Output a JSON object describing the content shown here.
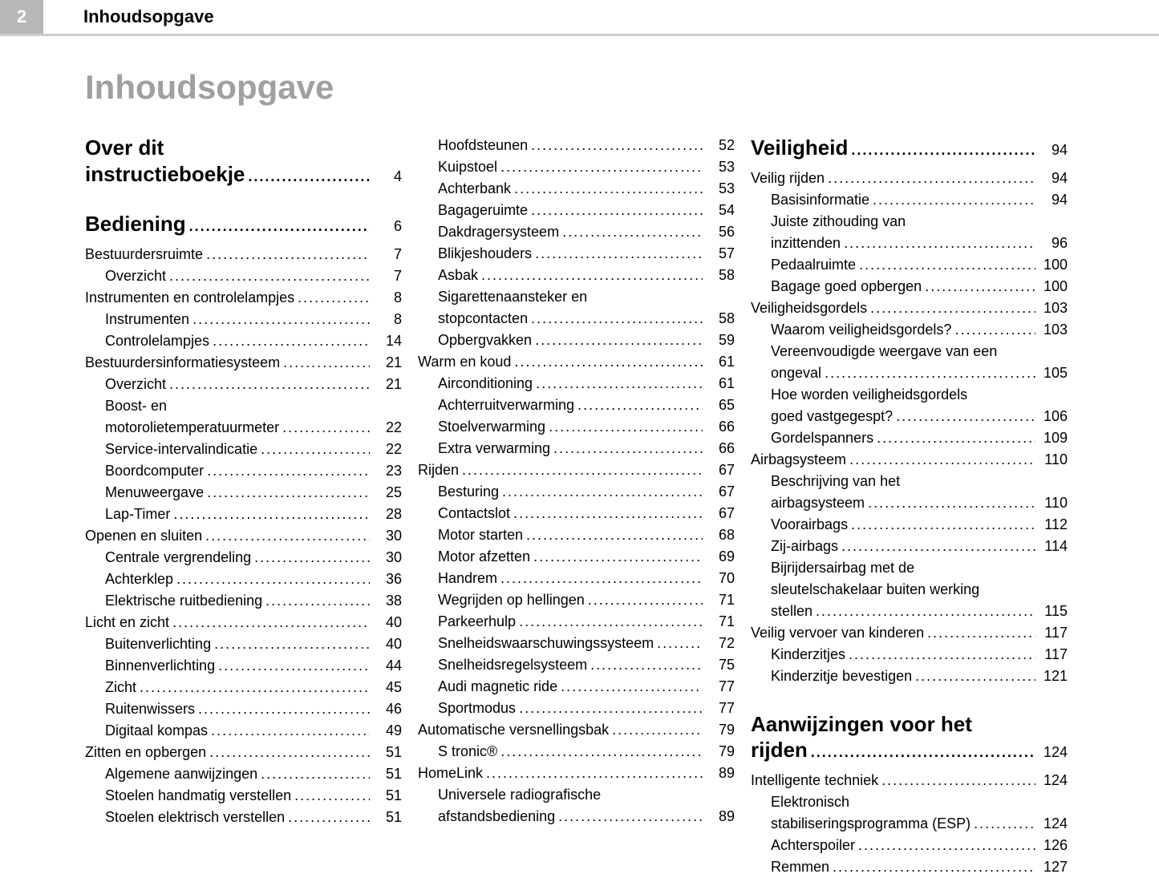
{
  "header": {
    "page_number": "2",
    "running_title": "Inhoudsopgave"
  },
  "main_title": "Inhoudsopgave",
  "col1": [
    {
      "type": "h1",
      "label": "Over dit instructieboekje",
      "page": "4"
    },
    {
      "type": "gap"
    },
    {
      "type": "h1",
      "label": "Bediening",
      "page": "6"
    },
    {
      "type": "gapsm"
    },
    {
      "type": "sec",
      "label": "Bestuurdersruimte",
      "page": "7"
    },
    {
      "type": "sub",
      "label": "Overzicht",
      "page": "7"
    },
    {
      "type": "sec",
      "label": "Instrumenten en controlelampjes",
      "page": "8"
    },
    {
      "type": "sub",
      "label": "Instrumenten",
      "page": "8"
    },
    {
      "type": "sub",
      "label": "Controlelampjes",
      "page": "14"
    },
    {
      "type": "sec",
      "label": "Bestuurdersinformatiesysteem",
      "page": "21"
    },
    {
      "type": "sub",
      "label": "Overzicht",
      "page": "21"
    },
    {
      "type": "sub",
      "label": "Boost- en motorolietemperatuurmeter",
      "page": "22"
    },
    {
      "type": "sub",
      "label": "Service-intervalindicatie",
      "page": "22"
    },
    {
      "type": "sub",
      "label": "Boordcomputer",
      "page": "23"
    },
    {
      "type": "sub",
      "label": "Menuweergave",
      "page": "25"
    },
    {
      "type": "sub",
      "label": "Lap-Timer",
      "page": "28"
    },
    {
      "type": "sec",
      "label": "Openen en sluiten",
      "page": "30"
    },
    {
      "type": "sub",
      "label": "Centrale vergrendeling",
      "page": "30"
    },
    {
      "type": "sub",
      "label": "Achterklep",
      "page": "36"
    },
    {
      "type": "sub",
      "label": "Elektrische ruitbediening",
      "page": "38"
    },
    {
      "type": "sec",
      "label": "Licht en zicht",
      "page": "40"
    },
    {
      "type": "sub",
      "label": "Buitenverlichting",
      "page": "40"
    },
    {
      "type": "sub",
      "label": "Binnenverlichting",
      "page": "44"
    },
    {
      "type": "sub",
      "label": "Zicht",
      "page": "45"
    },
    {
      "type": "sub",
      "label": "Ruitenwissers",
      "page": "46"
    },
    {
      "type": "sub",
      "label": "Digitaal kompas",
      "page": "49"
    },
    {
      "type": "sec",
      "label": "Zitten en opbergen",
      "page": "51"
    },
    {
      "type": "sub",
      "label": "Algemene aanwijzingen",
      "page": "51"
    },
    {
      "type": "sub",
      "label": "Stoelen handmatig verstellen",
      "page": "51"
    },
    {
      "type": "sub",
      "label": "Stoelen elektrisch verstellen",
      "page": "51"
    }
  ],
  "col2": [
    {
      "type": "sub",
      "label": "Hoofdsteunen",
      "page": "52"
    },
    {
      "type": "sub",
      "label": "Kuipstoel",
      "page": "53"
    },
    {
      "type": "sub",
      "label": "Achterbank",
      "page": "53"
    },
    {
      "type": "sub",
      "label": "Bagageruimte",
      "page": "54"
    },
    {
      "type": "sub",
      "label": "Dakdragersysteem",
      "page": "56"
    },
    {
      "type": "sub",
      "label": "Blikjeshouders",
      "page": "57"
    },
    {
      "type": "sub",
      "label": "Asbak",
      "page": "58"
    },
    {
      "type": "sub",
      "label": "Sigarettenaansteker en stopcontacten",
      "page": "58"
    },
    {
      "type": "sub",
      "label": "Opbergvakken",
      "page": "59"
    },
    {
      "type": "sec",
      "label": "Warm en koud",
      "page": "61"
    },
    {
      "type": "sub",
      "label": "Airconditioning",
      "page": "61"
    },
    {
      "type": "sub",
      "label": "Achterruitverwarming",
      "page": "65"
    },
    {
      "type": "sub",
      "label": "Stoelverwarming",
      "page": "66"
    },
    {
      "type": "sub",
      "label": "Extra verwarming",
      "page": "66"
    },
    {
      "type": "sec",
      "label": "Rijden",
      "page": "67"
    },
    {
      "type": "sub",
      "label": "Besturing",
      "page": "67"
    },
    {
      "type": "sub",
      "label": "Contactslot",
      "page": "67"
    },
    {
      "type": "sub",
      "label": "Motor starten",
      "page": "68"
    },
    {
      "type": "sub",
      "label": "Motor afzetten",
      "page": "69"
    },
    {
      "type": "sub",
      "label": "Handrem",
      "page": "70"
    },
    {
      "type": "sub",
      "label": "Wegrijden op hellingen",
      "page": "71"
    },
    {
      "type": "sub",
      "label": "Parkeerhulp",
      "page": "71"
    },
    {
      "type": "sub",
      "label": "Snelheidswaarschuwingssysteem",
      "page": "72"
    },
    {
      "type": "sub",
      "label": "Snelheidsregelsysteem",
      "page": "75"
    },
    {
      "type": "sub",
      "label": "Audi magnetic ride",
      "page": "77"
    },
    {
      "type": "sub",
      "label": "Sportmodus",
      "page": "77"
    },
    {
      "type": "sec",
      "label": "Automatische versnellingsbak",
      "page": "79"
    },
    {
      "type": "sub",
      "label": "S tronic®",
      "page": "79"
    },
    {
      "type": "sec",
      "label": "HomeLink",
      "page": "89"
    },
    {
      "type": "sub",
      "label": "Universele radiografische afstandsbediening",
      "page": "89"
    }
  ],
  "col3": [
    {
      "type": "h1",
      "label": "Veiligheid",
      "page": "94"
    },
    {
      "type": "gapsm"
    },
    {
      "type": "sec",
      "label": "Veilig rijden",
      "page": "94"
    },
    {
      "type": "sub",
      "label": "Basisinformatie",
      "page": "94"
    },
    {
      "type": "sub",
      "label": "Juiste zithouding van inzittenden",
      "page": "96"
    },
    {
      "type": "sub",
      "label": "Pedaalruimte",
      "page": "100"
    },
    {
      "type": "sub",
      "label": "Bagage goed opbergen",
      "page": "100"
    },
    {
      "type": "sec",
      "label": "Veiligheidsgordels",
      "page": "103"
    },
    {
      "type": "sub",
      "label": "Waarom veiligheidsgordels?",
      "page": "103"
    },
    {
      "type": "sub",
      "label": "Vereenvoudigde weergave van een ongeval",
      "page": "105"
    },
    {
      "type": "sub",
      "label": "Hoe worden veiligheidsgordels goed vastgegespt?",
      "page": "106"
    },
    {
      "type": "sub",
      "label": "Gordelspanners",
      "page": "109"
    },
    {
      "type": "sec",
      "label": "Airbagsysteem",
      "page": "110"
    },
    {
      "type": "sub",
      "label": "Beschrijving van het airbagsysteem",
      "page": "110"
    },
    {
      "type": "sub",
      "label": "Voorairbags",
      "page": "112"
    },
    {
      "type": "sub",
      "label": "Zij-airbags",
      "page": "114"
    },
    {
      "type": "sub",
      "label": "Bijrijdersairbag met de sleutelschakelaar buiten werking stellen",
      "page": "115"
    },
    {
      "type": "sec",
      "label": "Veilig vervoer van kinderen",
      "page": "117"
    },
    {
      "type": "sub",
      "label": "Kinderzitjes",
      "page": "117"
    },
    {
      "type": "sub",
      "label": "Kinderzitje bevestigen",
      "page": "121"
    },
    {
      "type": "gap"
    },
    {
      "type": "h1",
      "label": "Aanwijzingen voor het rijden",
      "page": "124"
    },
    {
      "type": "gapsm"
    },
    {
      "type": "sec",
      "label": "Intelligente techniek",
      "page": "124"
    },
    {
      "type": "sub",
      "label": "Elektronisch stabiliseringsprogramma (ESP)",
      "page": "124"
    },
    {
      "type": "sub",
      "label": "Achterspoiler",
      "page": "126"
    },
    {
      "type": "sub",
      "label": "Remmen",
      "page": "127"
    }
  ]
}
